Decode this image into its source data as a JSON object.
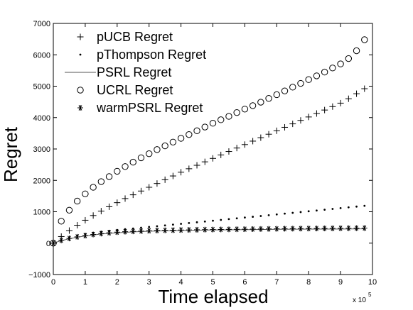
{
  "chart_data": {
    "type": "scatter",
    "xlabel": "Time elapsed",
    "ylabel": "Regret",
    "x_scale_label": "x 10",
    "x_scale_exponent": "5",
    "xlim": [
      0,
      10
    ],
    "ylim": [
      -1000,
      7000
    ],
    "x_ticks": [
      0,
      1,
      2,
      3,
      4,
      5,
      6,
      7,
      8,
      9,
      10
    ],
    "y_ticks": [
      -1000,
      0,
      1000,
      2000,
      3000,
      4000,
      5000,
      6000,
      7000
    ],
    "x_tick_labels": [
      "0",
      "1",
      "2",
      "3",
      "4",
      "5",
      "6",
      "7",
      "8",
      "9",
      "10"
    ],
    "y_tick_labels": [
      "−1000",
      "0",
      "1000",
      "2000",
      "3000",
      "4000",
      "5000",
      "6000",
      "7000"
    ],
    "grid": false,
    "legend_position": "top-left",
    "series": [
      {
        "name": "pUCB Regret",
        "marker": "plus",
        "x": [
          0,
          0.25,
          0.5,
          0.75,
          1.0,
          1.25,
          1.5,
          1.75,
          2.0,
          2.25,
          2.5,
          2.75,
          3.0,
          3.25,
          3.5,
          3.75,
          4.0,
          4.25,
          4.5,
          4.75,
          5.0,
          5.25,
          5.5,
          5.75,
          6.0,
          6.25,
          6.5,
          6.75,
          7.0,
          7.25,
          7.5,
          7.75,
          8.0,
          8.25,
          8.5,
          8.75,
          9.0,
          9.25,
          9.5,
          9.75
        ],
        "y": [
          0,
          210,
          400,
          570,
          730,
          880,
          1020,
          1160,
          1290,
          1420,
          1540,
          1660,
          1780,
          1900,
          2020,
          2140,
          2260,
          2370,
          2480,
          2590,
          2700,
          2810,
          2920,
          3030,
          3140,
          3250,
          3360,
          3470,
          3580,
          3690,
          3800,
          3910,
          4020,
          4130,
          4240,
          4350,
          4460,
          4600,
          4760,
          4920
        ]
      },
      {
        "name": "pThompson Regret",
        "marker": "dot",
        "x": [
          0,
          0.25,
          0.5,
          0.75,
          1.0,
          1.25,
          1.5,
          1.75,
          2.0,
          2.25,
          2.5,
          2.75,
          3.0,
          3.25,
          3.5,
          3.75,
          4.0,
          4.25,
          4.5,
          4.75,
          5.0,
          5.25,
          5.5,
          5.75,
          6.0,
          6.25,
          6.5,
          6.75,
          7.0,
          7.25,
          7.5,
          7.75,
          8.0,
          8.25,
          8.5,
          8.75,
          9.0,
          9.25,
          9.5,
          9.75
        ],
        "y": [
          0,
          100,
          180,
          240,
          290,
          330,
          365,
          395,
          420,
          445,
          465,
          490,
          515,
          540,
          565,
          590,
          615,
          640,
          665,
          690,
          715,
          740,
          765,
          790,
          815,
          840,
          865,
          890,
          915,
          940,
          965,
          990,
          1015,
          1040,
          1065,
          1090,
          1115,
          1140,
          1165,
          1190
        ]
      },
      {
        "name": "PSRL Regret",
        "marker": "line",
        "x": [
          0,
          0.25,
          0.5,
          0.75,
          1.0,
          1.5,
          2.0,
          2.5,
          3.0,
          3.5,
          4.0,
          5.0,
          6.0,
          7.0,
          8.0,
          9.0,
          9.75
        ],
        "y": [
          0,
          80,
          140,
          190,
          230,
          290,
          330,
          360,
          380,
          395,
          405,
          420,
          430,
          440,
          445,
          450,
          455
        ]
      },
      {
        "name": "UCRL Regret",
        "marker": "circle",
        "x": [
          0,
          0.25,
          0.5,
          0.75,
          1.0,
          1.25,
          1.5,
          1.75,
          2.0,
          2.25,
          2.5,
          2.75,
          3.0,
          3.25,
          3.5,
          3.75,
          4.0,
          4.25,
          4.5,
          4.75,
          5.0,
          5.25,
          5.5,
          5.75,
          6.0,
          6.25,
          6.5,
          6.75,
          7.0,
          7.25,
          7.5,
          7.75,
          8.0,
          8.25,
          8.5,
          8.75,
          9.0,
          9.25,
          9.5,
          9.75
        ],
        "y": [
          0,
          700,
          1050,
          1340,
          1570,
          1780,
          1960,
          2120,
          2290,
          2440,
          2580,
          2720,
          2850,
          2980,
          3100,
          3220,
          3340,
          3460,
          3580,
          3700,
          3820,
          3930,
          4040,
          4160,
          4270,
          4380,
          4490,
          4610,
          4730,
          4850,
          4970,
          5090,
          5210,
          5330,
          5450,
          5580,
          5710,
          5880,
          6130,
          6480
        ]
      },
      {
        "name": "warmPSRL Regret",
        "marker": "asterisk",
        "x": [
          0,
          0.25,
          0.5,
          0.75,
          1.0,
          1.25,
          1.5,
          1.75,
          2.0,
          2.25,
          2.5,
          2.75,
          3.0,
          3.25,
          3.5,
          3.75,
          4.0,
          4.25,
          4.5,
          4.75,
          5.0,
          5.25,
          5.5,
          5.75,
          6.0,
          6.25,
          6.5,
          6.75,
          7.0,
          7.25,
          7.5,
          7.75,
          8.0,
          8.25,
          8.5,
          8.75,
          9.0,
          9.25,
          9.5,
          9.75
        ],
        "y": [
          0,
          90,
          150,
          200,
          240,
          275,
          305,
          330,
          350,
          365,
          375,
          385,
          395,
          402,
          408,
          413,
          418,
          422,
          426,
          430,
          433,
          436,
          439,
          442,
          445,
          448,
          451,
          454,
          457,
          460,
          462,
          464,
          466,
          468,
          470,
          472,
          474,
          476,
          478,
          480
        ]
      }
    ]
  }
}
